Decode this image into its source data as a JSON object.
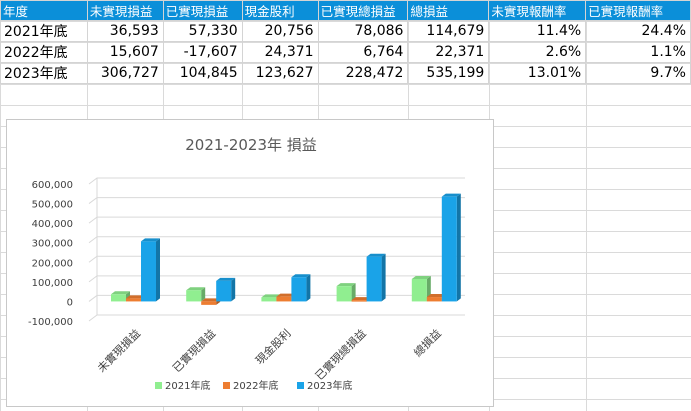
{
  "table": {
    "headers": [
      "年度",
      "未實現損益",
      "已實現損益",
      "現金股利",
      "已實現總損益",
      "總損益",
      "未實現報酬率",
      "已實現報酬率"
    ],
    "rows": [
      [
        "2021年底",
        "36,593",
        "57,330",
        "20,756",
        "78,086",
        "114,679",
        "11.4%",
        "24.4%"
      ],
      [
        "2022年底",
        "15,607",
        "-17,607",
        "24,371",
        "6,764",
        "22,371",
        "2.6%",
        "1.1%"
      ],
      [
        "2023年底",
        "306,727",
        "104,845",
        "123,627",
        "228,472",
        "535,199",
        "13.01%",
        "9.7%"
      ]
    ]
  },
  "colors": {
    "header_bg": "#0b8fd9",
    "negative_text": "#00a651",
    "highlight_text": "#e3000f",
    "series_2021": "#90ee90",
    "series_2022": "#ed7d31",
    "series_2023": "#1aa3e8"
  },
  "chart_data": {
    "type": "bar",
    "title": "2021-2023年 損益",
    "categories": [
      "未實現損益",
      "已實現損益",
      "現金股利",
      "已實現總損益",
      "總損益"
    ],
    "series": [
      {
        "name": "2021年底",
        "values": [
          36593,
          57330,
          20756,
          78086,
          114679
        ]
      },
      {
        "name": "2022年底",
        "values": [
          15607,
          -17607,
          24371,
          6764,
          22371
        ]
      },
      {
        "name": "2023年底",
        "values": [
          306727,
          104845,
          123627,
          228472,
          535199
        ]
      }
    ],
    "ylim": [
      -100000,
      600000
    ],
    "yticks": [
      "600,000",
      "500,000",
      "400,000",
      "300,000",
      "200,000",
      "100,000",
      "0",
      "-100,000"
    ],
    "grid": true,
    "legend": "bottom"
  }
}
